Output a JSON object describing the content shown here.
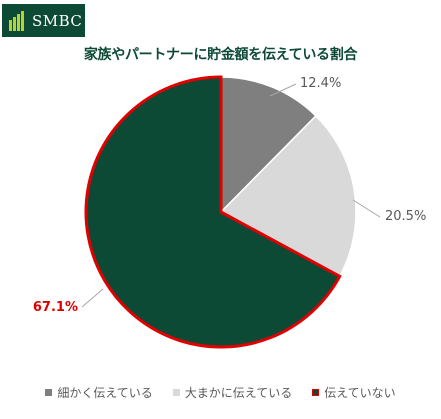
{
  "brand": {
    "name": "SMBC",
    "primary_color": "#0d4a36"
  },
  "chart_data": {
    "type": "pie",
    "title": "家族やパートナーに貯金額を伝えている割合",
    "series": [
      {
        "name": "細かく伝えている",
        "value": 12.4,
        "label": "12.4%",
        "color": "#7f7f7f"
      },
      {
        "name": "大まかに伝えている",
        "value": 20.5,
        "label": "20.5%",
        "color": "#d9d9d9"
      },
      {
        "name": "伝えていない",
        "value": 67.1,
        "label": "67.1%",
        "color": "#0d4a36",
        "highlight_color": "#e00000"
      }
    ],
    "legend_position": "bottom"
  }
}
